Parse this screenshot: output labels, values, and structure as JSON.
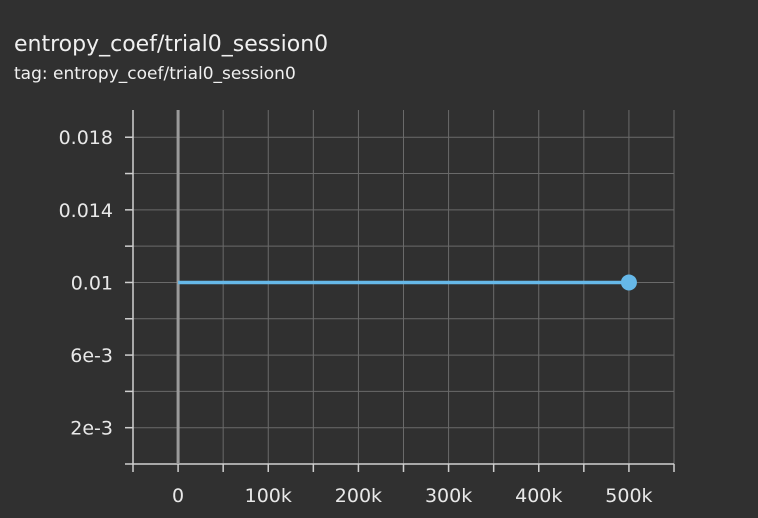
{
  "card": {
    "title": "entropy_coef/trial0_session0",
    "subtitle": "tag: entropy_coef/trial0_session0"
  },
  "chart_data": {
    "type": "line",
    "title": "entropy_coef/trial0_session0",
    "xlabel": "",
    "ylabel": "",
    "xlim": [
      -50000,
      550000
    ],
    "ylim": [
      0,
      0.0195
    ],
    "x_ticks": [
      0,
      100000,
      200000,
      300000,
      400000,
      500000
    ],
    "x_tick_labels": [
      "0",
      "100k",
      "200k",
      "300k",
      "400k",
      "500k"
    ],
    "y_ticks": [
      0.002,
      0.006,
      0.01,
      0.014,
      0.018
    ],
    "y_tick_labels": [
      "2e-3",
      "6e-3",
      "0.01",
      "0.014",
      "0.018"
    ],
    "grid": true,
    "series": [
      {
        "x": [
          0,
          500000
        ],
        "y": [
          0.01,
          0.01
        ],
        "color": "#66b8e8"
      }
    ],
    "colors": {
      "background": "#303030",
      "grid": "#6a6a6a",
      "axis": "#cfcfcf",
      "line": "#66b8e8"
    }
  }
}
